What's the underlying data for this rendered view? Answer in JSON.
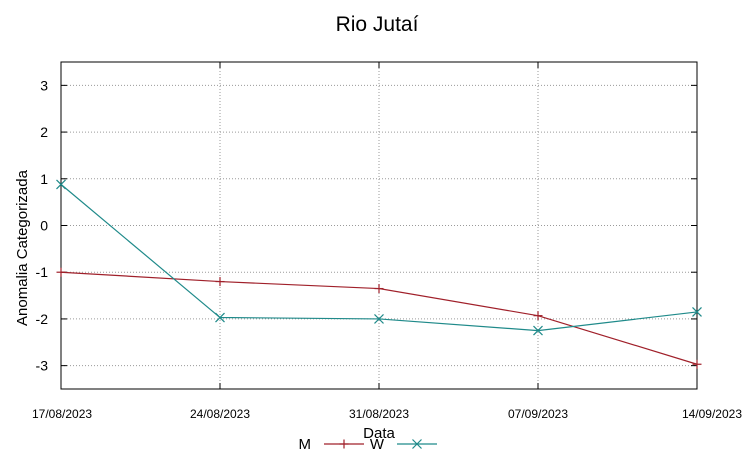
{
  "chart_data": {
    "type": "line",
    "title": "Rio Jutaí",
    "xlabel": "Data",
    "ylabel": "Anomalia Categorizada",
    "categories": [
      "17/08/2023",
      "24/08/2023",
      "31/08/2023",
      "07/09/2023",
      "14/09/2023"
    ],
    "ylim": [
      -3.5,
      3.5
    ],
    "yticks": [
      "3",
      "2",
      "1",
      "0",
      "-1",
      "-2",
      "-3"
    ],
    "grid": true,
    "legend": "bottom-center",
    "series": [
      {
        "name": "M",
        "color": "#a0202a",
        "marker": "plus",
        "values": [
          -1.0,
          -1.2,
          -1.35,
          -1.93,
          -2.97
        ]
      },
      {
        "name": "W",
        "color": "#1f8a8a",
        "marker": "cross",
        "values": [
          0.88,
          -1.97,
          -2.0,
          -2.25,
          -1.85
        ]
      }
    ]
  }
}
